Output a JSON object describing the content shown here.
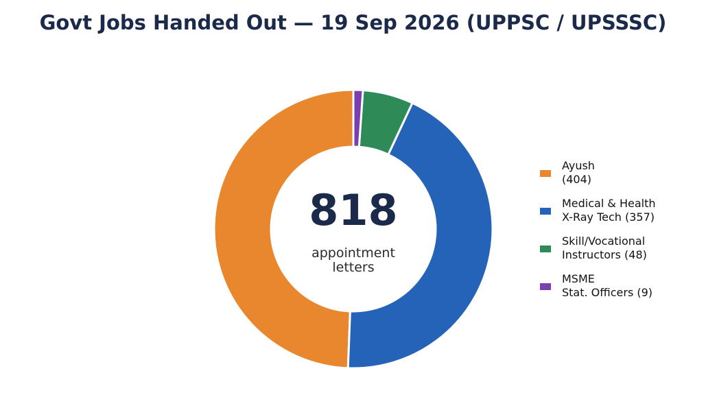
{
  "chart_data": {
    "type": "pie",
    "variant": "donut",
    "title": "Govt Jobs Handed Out — 19 Sep 2026 (UPPSC / UPSSSC)",
    "center": {
      "total": "818",
      "label_lines": [
        "appointment",
        "letters"
      ]
    },
    "slices": [
      {
        "label_lines": [
          "Ayush",
          "(404)"
        ],
        "value": 404,
        "color": "#e8872e"
      },
      {
        "label_lines": [
          "Medical & Health",
          "X-Ray Tech (357)"
        ],
        "value": 357,
        "color": "#2563b8"
      },
      {
        "label_lines": [
          "Skill/Vocational",
          "Instructors (48)"
        ],
        "value": 48,
        "color": "#2e8b57"
      },
      {
        "label_lines": [
          "MSME",
          "Stat. Officers (9)"
        ],
        "value": 9,
        "color": "#7b3fb0"
      }
    ],
    "legend_position": "right"
  }
}
